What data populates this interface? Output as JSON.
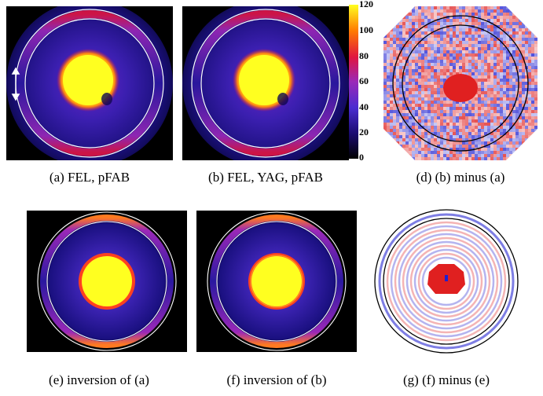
{
  "panels": {
    "a": {
      "caption": "(a)  FEL, pFAB"
    },
    "b": {
      "caption": "(b)  FEL, YAG, pFAB"
    },
    "d": {
      "caption": "(d)  (b) minus (a)"
    },
    "e": {
      "caption": "(e)  inversion of (a)"
    },
    "f": {
      "caption": "(f)  inversion of (b)"
    },
    "g": {
      "caption": "(g)  (f) minus (e)"
    }
  },
  "colorbar": {
    "ticks": [
      "120",
      "100",
      "80",
      "60",
      "40",
      "20",
      "0"
    ],
    "colors": [
      "#000000",
      "#1a0a6e",
      "#4a2cd0",
      "#9a28b8",
      "#e01540",
      "#ff7a00",
      "#ffff20"
    ]
  },
  "colors": {
    "background_dark": "#000000",
    "ring_white": "#ffffff",
    "ring_black": "#000000",
    "core_yellow": "#ffff20",
    "diff_red": "#e02020",
    "diff_blue": "#2020d0"
  }
}
